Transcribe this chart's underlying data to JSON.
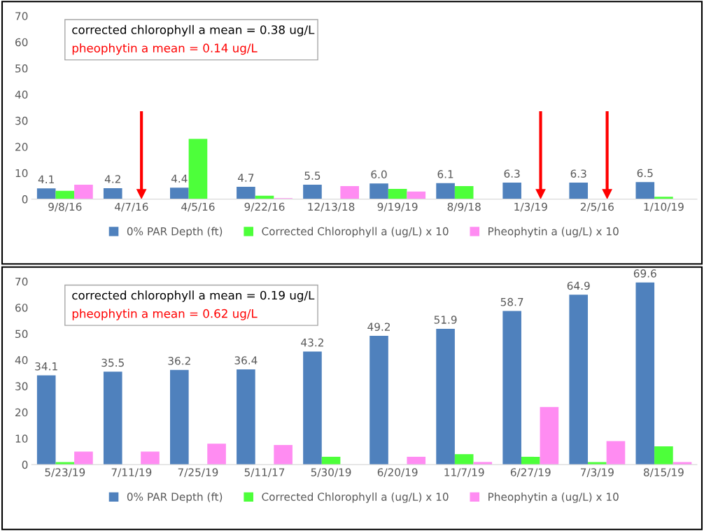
{
  "chart_data": [
    {
      "type": "bar",
      "categories": [
        "9/8/16",
        "4/7/16",
        "4/5/16",
        "9/22/16",
        "12/13/18",
        "9/19/19",
        "8/9/18",
        "1/3/19",
        "2/5/16",
        "1/10/19"
      ],
      "series": [
        {
          "name": "0% PAR Depth (ft)",
          "color": "#4f81bd",
          "values": [
            4.1,
            4.2,
            4.4,
            4.7,
            5.5,
            6.0,
            6.1,
            6.3,
            6.3,
            6.5
          ],
          "value_labels": [
            "4.1",
            "4.2",
            "4.4",
            "4.7",
            "5.5",
            "6.0",
            "6.1",
            "6.3",
            "6.3",
            "6.5"
          ]
        },
        {
          "name": "Corrected Chlorophyll a (ug/L) x 10",
          "color": "#4dff3a",
          "values": [
            3.2,
            null,
            23.0,
            1.3,
            null,
            3.9,
            5.0,
            null,
            null,
            0.9
          ]
        },
        {
          "name": "Pheophytin a (ug/L) x 10",
          "color": "#ff8cf2",
          "values": [
            5.5,
            null,
            null,
            0.4,
            5.0,
            2.9,
            null,
            null,
            null,
            null
          ]
        }
      ],
      "ylim": [
        0,
        70
      ],
      "yticks": [
        0,
        10,
        20,
        30,
        40,
        50,
        60,
        70
      ],
      "grid": false,
      "legend": "bottom",
      "annotations": [
        "corrected chlorophyll a mean = 0.38 ug/L",
        "pheophytin a mean = 0.14 ug/L"
      ]
    },
    {
      "type": "bar",
      "categories": [
        "5/23/19",
        "7/11/19",
        "7/25/19",
        "5/11/17",
        "5/30/19",
        "6/20/19",
        "11/7/19",
        "6/27/19",
        "7/3/19",
        "8/15/19"
      ],
      "series": [
        {
          "name": "0% PAR Depth (ft)",
          "color": "#4f81bd",
          "values": [
            34.1,
            35.5,
            36.2,
            36.4,
            43.2,
            49.2,
            51.9,
            58.7,
            64.9,
            69.6
          ],
          "value_labels": [
            "34.1",
            "35.5",
            "36.2",
            "36.4",
            "43.2",
            "49.2",
            "51.9",
            "58.7",
            "64.9",
            "69.6"
          ]
        },
        {
          "name": "Corrected Chlorophyll a (ug/L) x 10",
          "color": "#4dff3a",
          "values": [
            1.0,
            null,
            null,
            null,
            3.0,
            null,
            4.0,
            3.0,
            1.0,
            7.0
          ]
        },
        {
          "name": "Pheophytin a (ug/L) x 10",
          "color": "#ff8cf2",
          "values": [
            5.0,
            5.0,
            8.0,
            7.5,
            null,
            3.0,
            1.0,
            22.0,
            9.0,
            1.0
          ]
        }
      ],
      "ylim": [
        0,
        70
      ],
      "yticks": [
        0,
        10,
        20,
        30,
        40,
        50,
        60,
        70
      ],
      "grid": false,
      "legend": "bottom",
      "annotations": [
        "corrected chlorophyll a mean = 0.19 ug/L",
        "pheophytin a mean = 0.62 ug/L"
      ]
    }
  ]
}
